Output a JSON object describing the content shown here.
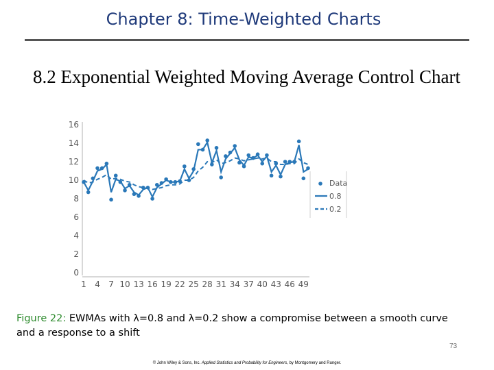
{
  "header": {
    "title": "Chapter 8: Time-Weighted Charts"
  },
  "section": {
    "title": "8.2 Exponential Weighted Moving Average Control Chart"
  },
  "caption": {
    "label": "Figure 22:",
    "text": "EWMAs with λ=0.8 and λ=0.2 show a compromise between a smooth curve and a response to a shift"
  },
  "footer": {
    "page_number": "73",
    "copyright_prefix": "© John Wiley & Sons, Inc. ",
    "copyright_book": "Applied Statistics and Probability for Engineers",
    "copyright_suffix": ", by Montgomery and Runger."
  },
  "colors": {
    "series": "#2a78b8",
    "header": "#1f3a7a",
    "caption_label": "#2e8b2e",
    "axis": "#555555"
  },
  "chart_data": {
    "type": "line",
    "title": "",
    "xlabel": "",
    "ylabel": "",
    "x_ticks": [
      "1",
      "4",
      "7",
      "10",
      "13",
      "16",
      "19",
      "22",
      "25",
      "28",
      "31",
      "34",
      "37",
      "40",
      "43",
      "46",
      "49"
    ],
    "y_ticks": [
      "0",
      "2",
      "4",
      "6",
      "8",
      "10",
      "12",
      "14",
      "16"
    ],
    "xlim": [
      1,
      50
    ],
    "ylim": [
      0,
      16
    ],
    "x": [
      1,
      2,
      3,
      4,
      5,
      6,
      7,
      8,
      9,
      10,
      11,
      12,
      13,
      14,
      15,
      16,
      17,
      18,
      19,
      20,
      21,
      22,
      23,
      24,
      25,
      26,
      27,
      28,
      29,
      30,
      31,
      32,
      33,
      34,
      35,
      36,
      37,
      38,
      39,
      40,
      41,
      42,
      43,
      44,
      45,
      46,
      47,
      48,
      49,
      50
    ],
    "legend": [
      "Data",
      "0.8",
      "0.2"
    ],
    "legend_position": "right",
    "series": [
      {
        "name": "Data",
        "style": "markers",
        "values": [
          9.8,
          8.7,
          10.2,
          11.3,
          11.3,
          11.8,
          7.9,
          10.5,
          9.8,
          8.9,
          9.5,
          8.5,
          8.3,
          9.2,
          9.2,
          8.0,
          9.5,
          9.7,
          10.1,
          9.8,
          9.8,
          9.9,
          11.5,
          10.0,
          11.2,
          13.9,
          13.3,
          14.3,
          11.7,
          13.5,
          10.3,
          12.6,
          13.0,
          13.7,
          11.9,
          11.5,
          12.7,
          12.4,
          12.8,
          11.8,
          12.7,
          10.5,
          11.8,
          10.4,
          12.0,
          12.0,
          12.0,
          14.2,
          10.2,
          11.3
        ]
      },
      {
        "name": "0.8",
        "style": "solid",
        "values": [
          9.8,
          8.9,
          9.9,
          11.0,
          11.2,
          11.7,
          8.7,
          10.1,
          9.9,
          9.1,
          9.4,
          8.7,
          8.4,
          9.0,
          9.2,
          8.2,
          9.2,
          9.6,
          10.0,
          9.8,
          9.8,
          9.9,
          11.2,
          10.2,
          11.0,
          13.3,
          13.3,
          14.1,
          11.9,
          13.2,
          10.9,
          12.3,
          12.9,
          13.5,
          12.2,
          11.6,
          12.5,
          12.4,
          12.7,
          12.0,
          12.6,
          10.9,
          11.6,
          10.6,
          11.7,
          11.9,
          12.0,
          13.8,
          10.9,
          11.2
        ]
      },
      {
        "name": "0.2",
        "style": "dashed",
        "values": [
          10.0,
          9.7,
          9.8,
          10.1,
          10.3,
          10.6,
          10.1,
          10.2,
          10.1,
          9.9,
          9.8,
          9.5,
          9.3,
          9.2,
          9.2,
          9.0,
          9.1,
          9.2,
          9.4,
          9.5,
          9.5,
          9.6,
          10.0,
          10.0,
          10.3,
          11.0,
          11.4,
          12.0,
          11.9,
          12.2,
          11.8,
          11.9,
          12.1,
          12.4,
          12.3,
          12.1,
          12.2,
          12.3,
          12.4,
          12.3,
          12.4,
          12.0,
          12.0,
          11.7,
          11.7,
          11.8,
          11.8,
          12.3,
          11.9,
          11.7
        ]
      }
    ]
  }
}
